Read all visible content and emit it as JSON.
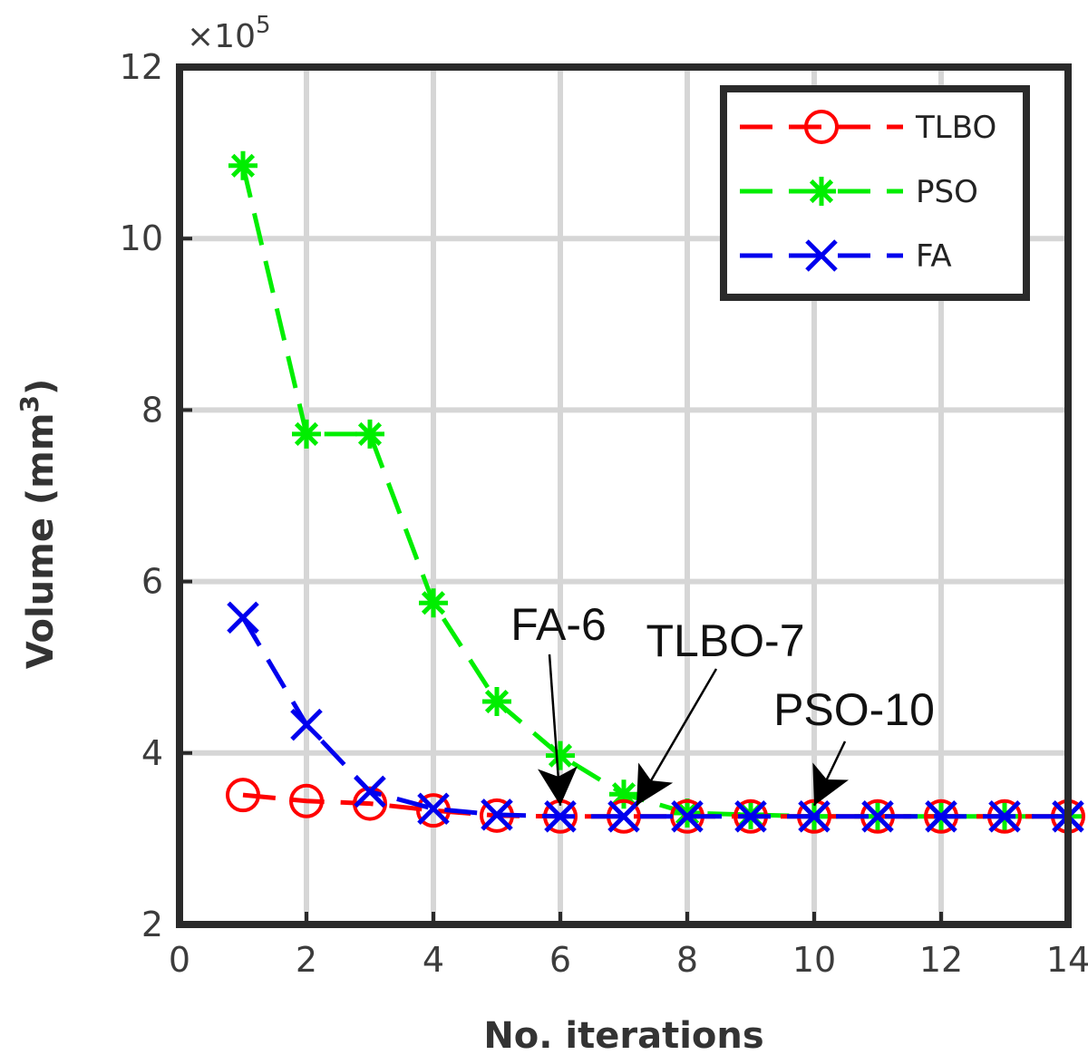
{
  "chart_data": {
    "type": "line",
    "xlabel": "No. iterations",
    "ylabel": "Volume (mm",
    "ylabel_sup": "3",
    "ylabel_close": ")",
    "y_exponent": {
      "times": "×",
      "base": "10",
      "power": "5"
    },
    "xlim": [
      0,
      14
    ],
    "ylim": [
      2,
      12
    ],
    "x_ticks": [
      0,
      2,
      4,
      6,
      8,
      10,
      12,
      14
    ],
    "y_ticks": [
      2,
      4,
      6,
      8,
      10,
      12
    ],
    "grid": true,
    "legend_position": "top-right",
    "series": [
      {
        "name": "TLBO",
        "color": "#ff0000",
        "marker": "circle",
        "x": [
          1,
          2,
          3,
          4,
          5,
          6,
          7,
          8,
          9,
          10,
          11,
          12,
          13,
          14
        ],
        "values": [
          3.51,
          3.44,
          3.41,
          3.33,
          3.27,
          3.26,
          3.26,
          3.26,
          3.26,
          3.26,
          3.26,
          3.26,
          3.26,
          3.26
        ]
      },
      {
        "name": "PSO",
        "color": "#00ee00",
        "marker": "asterisk",
        "x": [
          1,
          2,
          3,
          4,
          5,
          6,
          7,
          8,
          9,
          10,
          11,
          12,
          13,
          14
        ],
        "values": [
          10.85,
          7.72,
          7.72,
          5.75,
          4.6,
          3.97,
          3.52,
          3.3,
          3.28,
          3.26,
          3.26,
          3.26,
          3.26,
          3.26
        ]
      },
      {
        "name": "FA",
        "color": "#0000ee",
        "marker": "x",
        "x": [
          1,
          2,
          3,
          4,
          5,
          6,
          7,
          8,
          9,
          10,
          11,
          12,
          13,
          14
        ],
        "values": [
          5.58,
          4.33,
          3.55,
          3.35,
          3.28,
          3.26,
          3.26,
          3.26,
          3.26,
          3.26,
          3.26,
          3.26,
          3.26,
          3.26
        ]
      }
    ],
    "annotations": [
      {
        "text": "FA-6",
        "x": 6,
        "y": 3.26
      },
      {
        "text": "TLBO-7",
        "x": 7,
        "y": 3.26
      },
      {
        "text": "PSO-10",
        "x": 10,
        "y": 3.26
      }
    ]
  }
}
